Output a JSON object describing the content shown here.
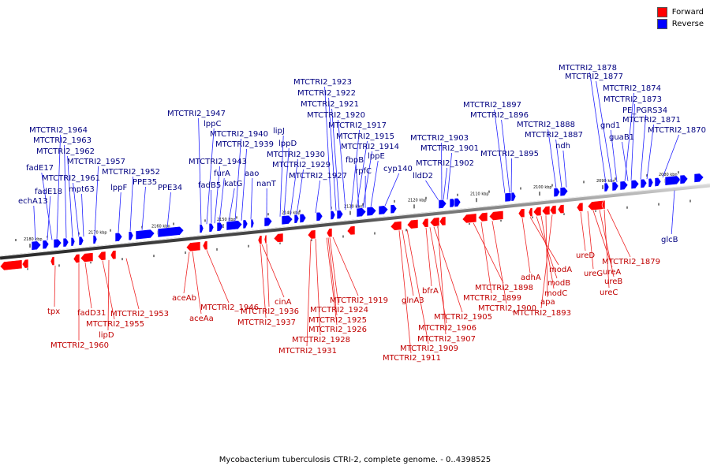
{
  "legend": {
    "forward_label": "Forward",
    "reverse_label": "Reverse",
    "forward_color": "#ff0000",
    "reverse_color": "#0000ff"
  },
  "caption": "Mycobacterium tuberculosis CTRI-2, complete genome. - 0..4398525",
  "label_colors": {
    "reverse_text": "#000080",
    "forward_text": "#c00000"
  },
  "ruler": [
    "2180 kbp",
    "2170 kbp",
    "2160 kbp",
    "2150 kbp",
    "2140 kbp",
    "2130 kbp",
    "2120 kbp",
    "2110 kbp",
    "2100 kbp",
    "2090 kbp",
    "2080 kbp"
  ],
  "reverse_labels": [
    "echA13",
    "fadE18",
    "fadE17",
    "MTCTRI2_1964",
    "MTCTRI2_1963",
    "MTCTRI2_1962",
    "MTCTRI2_1961",
    "mpt63",
    "MTCTRI2_1957",
    "lppF",
    "MTCTRI2_1952",
    "PPE35",
    "PPE34",
    "MTCTRI2_1947",
    "lppC",
    "fadB5",
    "MTCTRI2_1943",
    "furA",
    "katG",
    "MTCTRI2_1940",
    "MTCTRI2_1939",
    "aao",
    "nanT",
    "lipJ",
    "lppD",
    "MTCTRI2_1930",
    "MTCTRI2_1929",
    "MTCTRI2_1927",
    "MTCTRI2_1923",
    "MTCTRI2_1922",
    "MTCTRI2_1921",
    "MTCTRI2_1920",
    "MTCTRI2_1917",
    "MTCTRI2_1915",
    "MTCTRI2_1914",
    "fbpB",
    "rpfC",
    "lppE",
    "cyp140",
    "MTCTRI2_1903",
    "MTCTRI2_1901",
    "MTCTRI2_1902",
    "lldD2",
    "MTCTRI2_1897",
    "MTCTRI2_1896",
    "MTCTRI2_1895",
    "MTCTRI2_1888",
    "MTCTRI2_1887",
    "ndh",
    "MTCTRI2_1878",
    "MTCTRI2_1877",
    "MTCTRI2_1874",
    "MTCTRI2_1873",
    "PE_PGRS34",
    "gnd1",
    "guaB1",
    "MTCTRI2_1871",
    "MTCTRI2_1870",
    "glcB"
  ],
  "forward_labels": [
    "tpx",
    "fadD31",
    "MTCTRI2_1960",
    "MTCTRI2_1955",
    "lipD",
    "MTCTRI2_1953",
    "aceAb",
    "aceAa",
    "MTCTRI2_1946",
    "cinA",
    "MTCTRI2_1936",
    "MTCTRI2_1937",
    "MTCTRI2_1919",
    "MTCTRI2_1924",
    "MTCTRI2_1925",
    "MTCTRI2_1926",
    "MTCTRI2_1928",
    "MTCTRI2_1931",
    "glnA3",
    "bfrA",
    "MTCTRI2_1905",
    "MTCTRI2_1906",
    "MTCTRI2_1907",
    "MTCTRI2_1909",
    "MTCTRI2_1911",
    "MTCTRI2_1898",
    "MTCTRI2_1899",
    "MTCTRI2_1900",
    "adhA",
    "modA",
    "modB",
    "modC",
    "apa",
    "MTCTRI2_1893",
    "ureD",
    "ureG",
    "ureA",
    "ureB",
    "ureC",
    "MTCTRI2_1879"
  ]
}
